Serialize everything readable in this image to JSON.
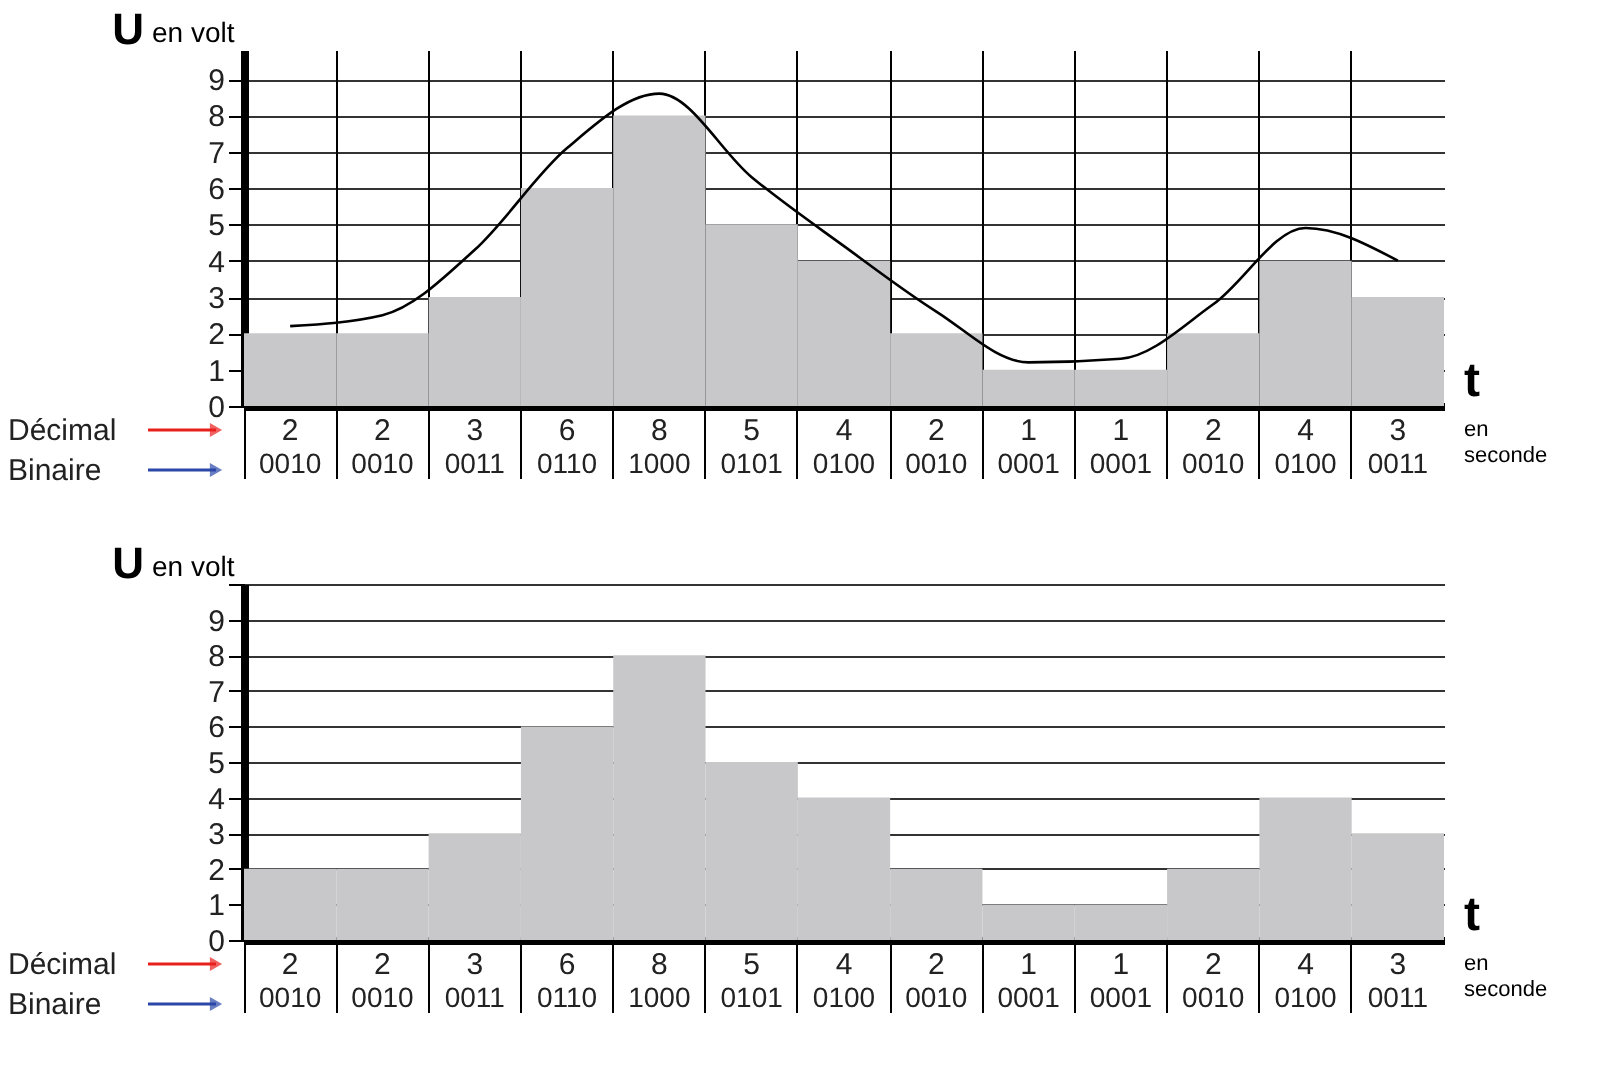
{
  "chart_data": [
    {
      "type": "bar",
      "ylabel": "U en volt",
      "xlabel": "t en seconde",
      "categories": [
        "0010",
        "0010",
        "0011",
        "0110",
        "1000",
        "0101",
        "0100",
        "0010",
        "0001",
        "0001",
        "0010",
        "0100",
        "0011"
      ],
      "series": [
        {
          "color": "#c8c8ca",
          "values": [
            2,
            2,
            3,
            6,
            8,
            5,
            4,
            2,
            1,
            1,
            2,
            4,
            3
          ],
          "value_labels": [
            "2",
            "2",
            "3",
            "6",
            "8",
            "5",
            "4",
            "2",
            "1",
            "1",
            "2",
            "4",
            "3"
          ]
        },
        {
          "type": "line",
          "color": "#000000",
          "values": [
            2.2,
            2.5,
            4.3,
            7.1,
            8.6,
            6.3,
            4.4,
            2.6,
            1.2,
            1.3,
            2.8,
            4.9,
            4.0
          ]
        }
      ],
      "annotations": [
        "Décimal",
        "Binaire"
      ],
      "ylim": [
        0,
        9.8
      ],
      "yticks": [
        0,
        1,
        2,
        3,
        4,
        5,
        6,
        7,
        8,
        9
      ],
      "grid": true,
      "marker": "none"
    },
    {
      "type": "bar",
      "ylabel": "U en volt",
      "xlabel": "t en seconde",
      "categories": [
        "0010",
        "0010",
        "0011",
        "0110",
        "1000",
        "0101",
        "0100",
        "0010",
        "0001",
        "0001",
        "0010",
        "0100",
        "0011"
      ],
      "series": [
        {
          "color": "#c8c8ca",
          "values": [
            2,
            2,
            3,
            6,
            8,
            5,
            4,
            2,
            1,
            1,
            2,
            4,
            3
          ],
          "value_labels": [
            "2",
            "2",
            "3",
            "6",
            "8",
            "5",
            "4",
            "2",
            "1",
            "1",
            "2",
            "4",
            "3"
          ]
        }
      ],
      "annotations": [
        "Décimal",
        "Binaire"
      ],
      "ylim": [
        0,
        10
      ],
      "yticks": [
        0,
        1,
        2,
        3,
        4,
        5,
        6,
        7,
        8,
        9,
        {
          "value": 10,
          "label": null
        }
      ],
      "grid": "y"
    }
  ]
}
